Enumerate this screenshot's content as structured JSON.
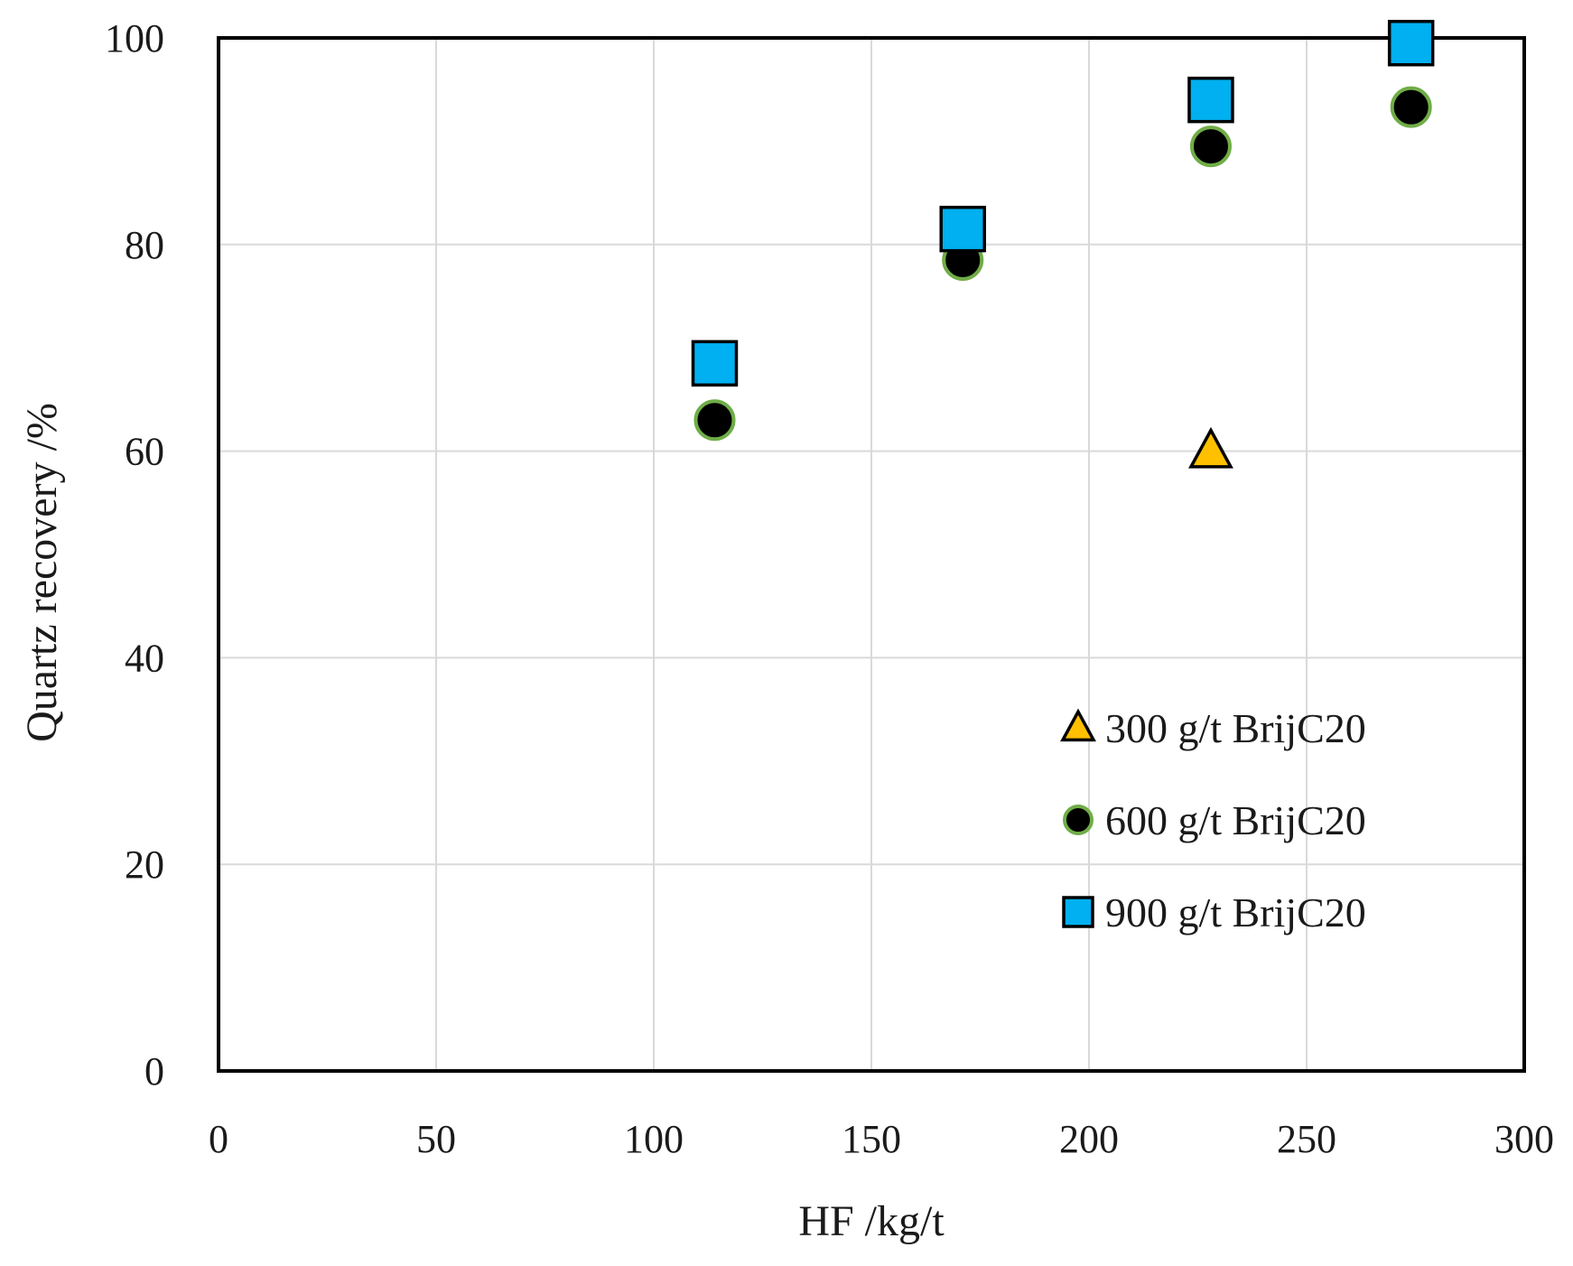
{
  "chart_data": {
    "type": "scatter",
    "title": "",
    "xlabel": "HF /kg/t",
    "ylabel": "Quartz recovery /%",
    "xlim": [
      0,
      300
    ],
    "ylim": [
      0,
      100
    ],
    "x_ticks": [
      0,
      50,
      100,
      150,
      200,
      250,
      300
    ],
    "y_ticks": [
      0,
      20,
      40,
      60,
      80,
      100
    ],
    "grid": true,
    "legend_position": "bottom-right",
    "series": [
      {
        "name": "300 g/t BrijC20",
        "marker": "triangle",
        "fill": "#FFC000",
        "stroke": "#000000",
        "x": [
          228
        ],
        "y": [
          60
        ]
      },
      {
        "name": "600 g/t BrijC20",
        "marker": "circle",
        "fill": "#000000",
        "stroke": "#70AD47",
        "x": [
          114,
          171,
          228,
          274
        ],
        "y": [
          63,
          78.5,
          89.5,
          93.3
        ]
      },
      {
        "name": "900 g/t BrijC20",
        "marker": "square",
        "fill": "#00B0F0",
        "stroke": "#000000",
        "x": [
          114,
          171,
          228,
          274
        ],
        "y": [
          68.5,
          81.5,
          94,
          99.5
        ]
      }
    ]
  }
}
